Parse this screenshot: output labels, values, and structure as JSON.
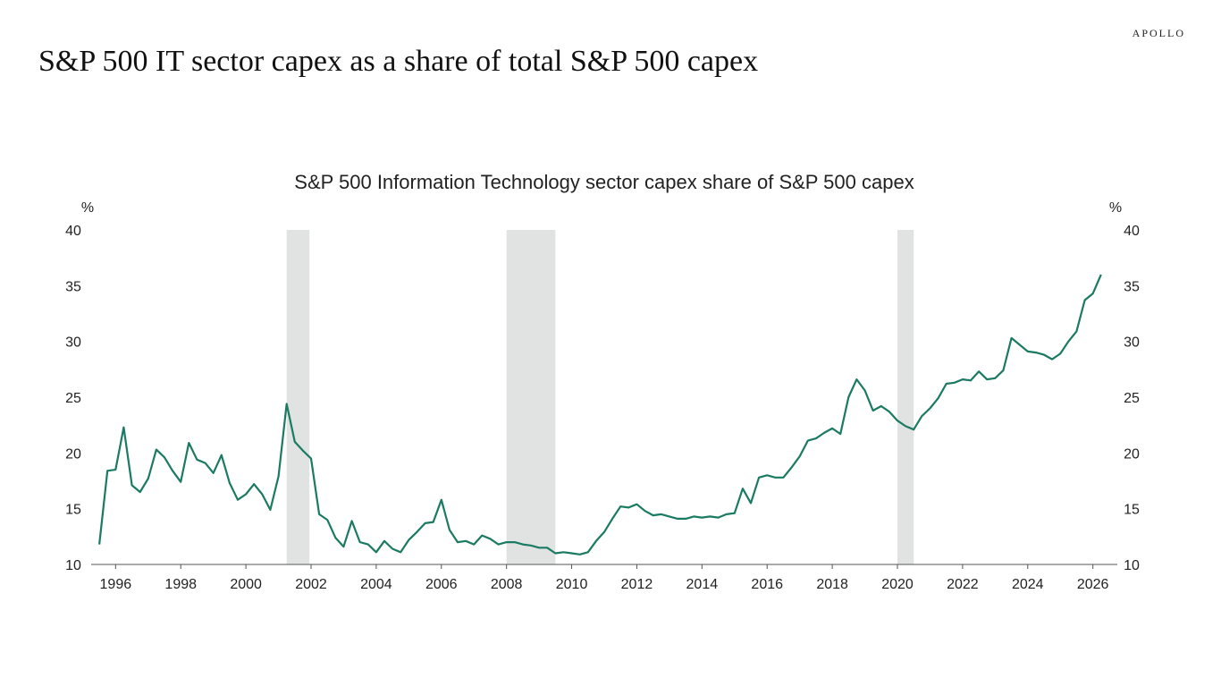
{
  "header": {
    "brand": "APOLLO",
    "title": "S&P 500 IT sector capex as a share of total S&P 500 capex"
  },
  "chart_data": {
    "type": "line",
    "title": "S&P 500 Information Technology sector capex share of S&P 500 capex",
    "xlabel": "",
    "ylabel": "%",
    "ylabel_right": "%",
    "ylim": [
      10,
      40
    ],
    "xlim": [
      1995.25,
      2026.75
    ],
    "yticks": [
      10,
      15,
      20,
      25,
      30,
      35,
      40
    ],
    "xticks": [
      1996,
      1998,
      2000,
      2002,
      2004,
      2006,
      2008,
      2010,
      2012,
      2014,
      2016,
      2018,
      2020,
      2022,
      2024,
      2026
    ],
    "grid": false,
    "legend": "none",
    "line_color": "#1a7a62",
    "recession_color": "#e1e3e2",
    "recessions": [
      [
        2001.25,
        2001.95
      ],
      [
        2008.0,
        2009.5
      ],
      [
        2020.0,
        2020.5
      ]
    ],
    "series": [
      {
        "x": [
          1995.5,
          1995.75,
          1996.0,
          1996.25,
          1996.5,
          1996.75,
          1997.0,
          1997.25,
          1997.5,
          1997.75,
          1998.0,
          1998.25,
          1998.5,
          1998.75,
          1999.0,
          1999.25,
          1999.5,
          1999.75,
          2000.0,
          2000.25,
          2000.5,
          2000.75,
          2001.0,
          2001.25,
          2001.5,
          2001.75,
          2002.0,
          2002.25,
          2002.5,
          2002.75,
          2003.0,
          2003.25,
          2003.5,
          2003.75,
          2004.0,
          2004.25,
          2004.5,
          2004.75,
          2005.0,
          2005.25,
          2005.5,
          2005.75,
          2006.0,
          2006.25,
          2006.5,
          2006.75,
          2007.0,
          2007.25,
          2007.5,
          2007.75,
          2008.0,
          2008.25,
          2008.5,
          2008.75,
          2009.0,
          2009.25,
          2009.5,
          2009.75,
          2010.0,
          2010.25,
          2010.5,
          2010.75,
          2011.0,
          2011.25,
          2011.5,
          2011.75,
          2012.0,
          2012.25,
          2012.5,
          2012.75,
          2013.0,
          2013.25,
          2013.5,
          2013.75,
          2014.0,
          2014.25,
          2014.5,
          2014.75,
          2015.0,
          2015.25,
          2015.5,
          2015.75,
          2016.0,
          2016.25,
          2016.5,
          2016.75,
          2017.0,
          2017.25,
          2017.5,
          2017.75,
          2018.0,
          2018.25,
          2018.5,
          2018.75,
          2019.0,
          2019.25,
          2019.5,
          2019.75,
          2020.0,
          2020.25,
          2020.5,
          2020.75,
          2021.0,
          2021.25,
          2021.5,
          2021.75,
          2022.0,
          2022.25,
          2022.5,
          2022.75,
          2023.0,
          2023.25,
          2023.5,
          2023.75,
          2024.0,
          2024.25,
          2024.5,
          2024.75,
          2025.0,
          2025.25,
          2025.5,
          2025.75,
          2026.0,
          2026.25
        ],
        "values": [
          11.8,
          18.4,
          18.5,
          22.3,
          17.1,
          16.5,
          17.7,
          20.3,
          19.6,
          18.4,
          17.4,
          20.9,
          19.4,
          19.1,
          18.2,
          19.8,
          17.3,
          15.8,
          16.3,
          17.2,
          16.3,
          14.9,
          17.9,
          24.4,
          21.0,
          20.2,
          19.5,
          14.5,
          14.0,
          12.4,
          11.6,
          13.9,
          12.0,
          11.8,
          11.1,
          12.1,
          11.4,
          11.1,
          12.2,
          12.9,
          13.7,
          13.8,
          15.8,
          13.1,
          12.0,
          12.1,
          11.8,
          12.6,
          12.3,
          11.8,
          12.0,
          12.0,
          11.8,
          11.7,
          11.5,
          11.5,
          11.0,
          11.1,
          11.0,
          10.9,
          11.1,
          12.1,
          12.9,
          14.1,
          15.2,
          15.1,
          15.4,
          14.8,
          14.4,
          14.5,
          14.3,
          14.1,
          14.1,
          14.3,
          14.2,
          14.3,
          14.2,
          14.5,
          14.6,
          16.8,
          15.5,
          17.8,
          18.0,
          17.8,
          17.8,
          18.7,
          19.7,
          21.1,
          21.3,
          21.8,
          22.2,
          21.7,
          25.0,
          26.6,
          25.6,
          23.8,
          24.2,
          23.7,
          22.9,
          22.4,
          22.1,
          23.3,
          24.0,
          24.9,
          26.2,
          26.3,
          26.6,
          26.5,
          27.3,
          26.6,
          26.7,
          27.4,
          30.3,
          29.7,
          29.1,
          29.0,
          28.8,
          28.4,
          28.9,
          30.0,
          30.9,
          33.7,
          34.3,
          36.0
        ]
      }
    ]
  }
}
